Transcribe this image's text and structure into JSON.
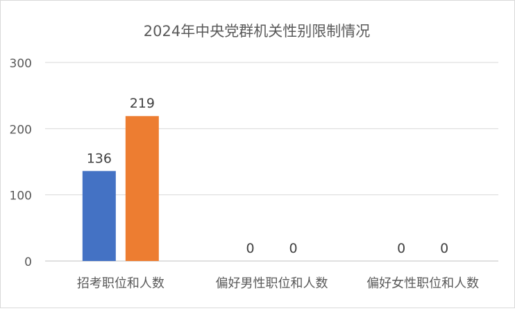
{
  "chart_data": {
    "type": "bar",
    "title": "2024年中央党群机关性别限制情况",
    "categories": [
      "招考职位和人数",
      "偏好男性职位和人数",
      "偏好女性职位和人数"
    ],
    "series": [
      {
        "name": "",
        "values": [
          136,
          0,
          0
        ],
        "color": "#4472C4"
      },
      {
        "name": "",
        "values": [
          219,
          0,
          0
        ],
        "color": "#ED7D31"
      }
    ],
    "ylim": [
      0,
      300
    ],
    "yticks": [
      0,
      100,
      200,
      300
    ],
    "grid": true,
    "legend": "none"
  }
}
